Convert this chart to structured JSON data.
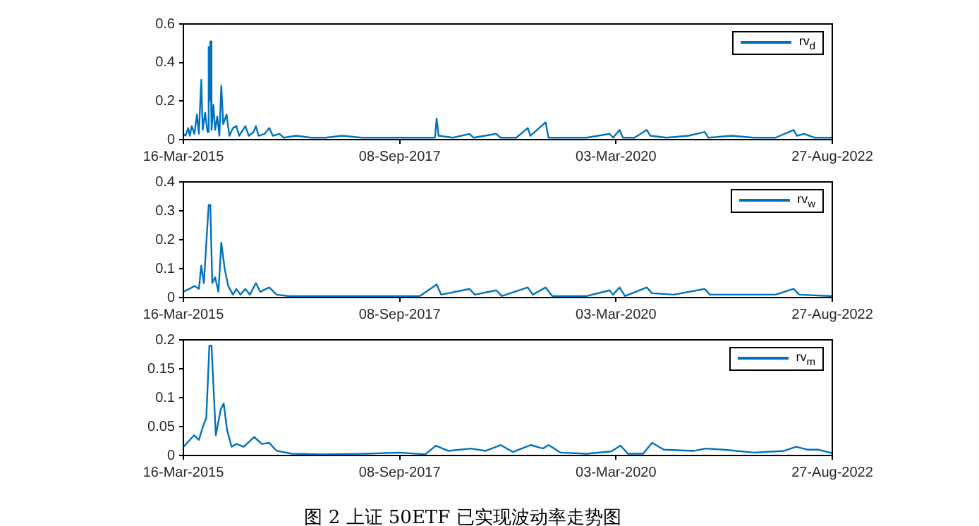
{
  "chart_data": [
    {
      "type": "line",
      "legend": "top right",
      "grid": false,
      "xlim": [
        "2015-03-16",
        "2022-08-27"
      ],
      "xticks": [
        {
          "value": "2015-03-16",
          "label": "16-Mar-2015"
        },
        {
          "value": "2017-09-08",
          "label": "08-Sep-2017"
        },
        {
          "value": "2020-03-03",
          "label": "03-Mar-2020"
        },
        {
          "value": "2022-08-27",
          "label": "27-Aug-2022"
        }
      ],
      "ylim": [
        0,
        0.6
      ],
      "yticks": [
        0,
        0.2,
        0.4,
        0.6
      ],
      "series": [
        {
          "name": "rv$_{d}$",
          "color": "#0072bd",
          "x": [
            "2015-03-16",
            "2015-03-25",
            "2015-04-05",
            "2015-04-12",
            "2015-04-20",
            "2015-05-01",
            "2015-05-12",
            "2015-05-20",
            "2015-05-30",
            "2015-06-05",
            "2015-06-15",
            "2015-06-25",
            "2015-06-30",
            "2015-07-03",
            "2015-07-07",
            "2015-07-12",
            "2015-07-20",
            "2015-07-27",
            "2015-08-05",
            "2015-08-14",
            "2015-08-22",
            "2015-08-30",
            "2015-09-13",
            "2015-09-25",
            "2015-10-10",
            "2015-10-24",
            "2015-11-05",
            "2015-11-20",
            "2015-12-01",
            "2015-12-15",
            "2016-01-05",
            "2016-01-14",
            "2016-01-25",
            "2016-02-20",
            "2016-03-10",
            "2016-03-25",
            "2016-04-22",
            "2016-05-10",
            "2016-07-01",
            "2016-09-01",
            "2016-11-01",
            "2017-01-10",
            "2017-04-01",
            "2017-07-01",
            "2017-09-08",
            "2017-12-01",
            "2018-02-03",
            "2018-02-10",
            "2018-02-18",
            "2018-04-20",
            "2018-06-28",
            "2018-07-15",
            "2018-10-18",
            "2018-11-05",
            "2019-01-10",
            "2019-02-27",
            "2019-03-10",
            "2019-05-13",
            "2019-05-25",
            "2019-08-01",
            "2019-11-01",
            "2020-02-05",
            "2020-02-20",
            "2020-03-18",
            "2020-04-01",
            "2020-05-20",
            "2020-07-10",
            "2020-07-25",
            "2020-10-01",
            "2021-01-01",
            "2021-03-10",
            "2021-03-25",
            "2021-07-01",
            "2021-10-01",
            "2022-01-01",
            "2022-03-18",
            "2022-04-01",
            "2022-05-01",
            "2022-06-15",
            "2022-08-27"
          ],
          "values": [
            0.03,
            0.02,
            0.06,
            0.02,
            0.07,
            0.03,
            0.13,
            0.03,
            0.31,
            0.05,
            0.14,
            0.04,
            0.48,
            0.2,
            0.51,
            0.05,
            0.18,
            0.05,
            0.12,
            0.02,
            0.28,
            0.08,
            0.13,
            0.02,
            0.06,
            0.07,
            0.02,
            0.05,
            0.07,
            0.02,
            0.04,
            0.07,
            0.02,
            0.03,
            0.06,
            0.02,
            0.03,
            0.01,
            0.02,
            0.01,
            0.01,
            0.02,
            0.01,
            0.01,
            0.01,
            0.01,
            0.01,
            0.11,
            0.02,
            0.01,
            0.03,
            0.01,
            0.03,
            0.01,
            0.01,
            0.06,
            0.02,
            0.09,
            0.01,
            0.01,
            0.01,
            0.03,
            0.01,
            0.05,
            0.01,
            0.01,
            0.05,
            0.02,
            0.01,
            0.02,
            0.04,
            0.01,
            0.02,
            0.01,
            0.01,
            0.05,
            0.02,
            0.03,
            0.01,
            0.01
          ]
        }
      ]
    },
    {
      "type": "line",
      "legend": "top right",
      "grid": false,
      "xlim": [
        "2015-03-16",
        "2022-08-27"
      ],
      "xticks": [
        {
          "value": "2015-03-16",
          "label": "16-Mar-2015"
        },
        {
          "value": "2017-09-08",
          "label": "08-Sep-2017"
        },
        {
          "value": "2020-03-03",
          "label": "03-Mar-2020"
        },
        {
          "value": "2022-08-27",
          "label": "27-Aug-2022"
        }
      ],
      "ylim": [
        0,
        0.4
      ],
      "yticks": [
        0,
        0.1,
        0.2,
        0.3,
        0.4
      ],
      "series": [
        {
          "name": "rv$_{w}$",
          "color": "#0072bd",
          "x": [
            "2015-03-16",
            "2015-04-10",
            "2015-05-01",
            "2015-05-20",
            "2015-05-30",
            "2015-06-10",
            "2015-06-30",
            "2015-07-07",
            "2015-07-15",
            "2015-07-27",
            "2015-08-10",
            "2015-08-22",
            "2015-09-05",
            "2015-09-20",
            "2015-10-10",
            "2015-10-24",
            "2015-11-10",
            "2015-12-01",
            "2015-12-20",
            "2016-01-14",
            "2016-02-01",
            "2016-03-10",
            "2016-04-10",
            "2016-06-01",
            "2016-10-01",
            "2017-03-01",
            "2017-09-08",
            "2017-12-01",
            "2018-02-10",
            "2018-03-01",
            "2018-06-28",
            "2018-07-20",
            "2018-10-18",
            "2018-11-10",
            "2019-02-27",
            "2019-03-20",
            "2019-05-13",
            "2019-06-10",
            "2019-11-01",
            "2020-02-05",
            "2020-02-20",
            "2020-03-18",
            "2020-04-10",
            "2020-07-10",
            "2020-08-01",
            "2020-11-01",
            "2021-03-10",
            "2021-04-01",
            "2021-09-01",
            "2022-01-01",
            "2022-03-18",
            "2022-04-10",
            "2022-08-27"
          ],
          "values": [
            0.02,
            0.03,
            0.04,
            0.03,
            0.11,
            0.05,
            0.32,
            0.32,
            0.05,
            0.07,
            0.02,
            0.19,
            0.1,
            0.04,
            0.01,
            0.03,
            0.01,
            0.03,
            0.01,
            0.05,
            0.02,
            0.035,
            0.01,
            0.005,
            0.005,
            0.005,
            0.005,
            0.005,
            0.045,
            0.01,
            0.03,
            0.01,
            0.025,
            0.005,
            0.035,
            0.01,
            0.035,
            0.005,
            0.005,
            0.025,
            0.01,
            0.035,
            0.005,
            0.035,
            0.015,
            0.01,
            0.03,
            0.01,
            0.01,
            0.01,
            0.03,
            0.01,
            0.005
          ]
        }
      ]
    },
    {
      "type": "line",
      "legend": "top right",
      "grid": false,
      "xlim": [
        "2015-03-16",
        "2022-08-27"
      ],
      "xticks": [
        {
          "value": "2015-03-16",
          "label": "16-Mar-2015"
        },
        {
          "value": "2017-09-08",
          "label": "08-Sep-2017"
        },
        {
          "value": "2020-03-03",
          "label": "03-Mar-2020"
        },
        {
          "value": "2022-08-27",
          "label": "27-Aug-2022"
        }
      ],
      "ylim": [
        0,
        0.2
      ],
      "yticks": [
        0,
        0.05,
        0.1,
        0.15,
        0.2
      ],
      "annotations": [
        "图 2 上证 50ETF 已实现波动率走势图"
      ],
      "series": [
        {
          "name": "rv$_{m}$",
          "color": "#0072bd",
          "x": [
            "2015-03-16",
            "2015-04-30",
            "2015-05-20",
            "2015-06-06",
            "2015-06-20",
            "2015-07-03",
            "2015-07-12",
            "2015-07-30",
            "2015-08-20",
            "2015-09-01",
            "2015-09-15",
            "2015-10-04",
            "2015-10-24",
            "2015-11-24",
            "2016-01-07",
            "2016-02-08",
            "2016-03-10",
            "2016-04-10",
            "2016-06-13",
            "2016-10-17",
            "2017-04-17",
            "2017-09-08",
            "2017-12-24",
            "2018-02-07",
            "2018-03-30",
            "2018-07-03",
            "2018-09-04",
            "2018-11-06",
            "2018-12-26",
            "2019-03-12",
            "2019-05-01",
            "2019-05-26",
            "2019-07-15",
            "2019-11-01",
            "2020-02-12",
            "2020-03-22",
            "2020-04-22",
            "2020-06-25",
            "2020-08-01",
            "2020-09-20",
            "2021-01-24",
            "2021-03-15",
            "2021-05-30",
            "2021-10-03",
            "2022-02-06",
            "2022-03-28",
            "2022-05-17",
            "2022-07-01",
            "2022-08-27"
          ],
          "values": [
            0.015,
            0.035,
            0.027,
            0.05,
            0.065,
            0.19,
            0.19,
            0.035,
            0.08,
            0.09,
            0.045,
            0.015,
            0.02,
            0.015,
            0.032,
            0.02,
            0.022,
            0.008,
            0.003,
            0.002,
            0.003,
            0.005,
            0.002,
            0.017,
            0.008,
            0.012,
            0.008,
            0.018,
            0.006,
            0.018,
            0.012,
            0.018,
            0.005,
            0.003,
            0.007,
            0.017,
            0.003,
            0.003,
            0.022,
            0.01,
            0.008,
            0.012,
            0.01,
            0.005,
            0.008,
            0.015,
            0.01,
            0.01,
            0.004
          ]
        }
      ]
    }
  ]
}
